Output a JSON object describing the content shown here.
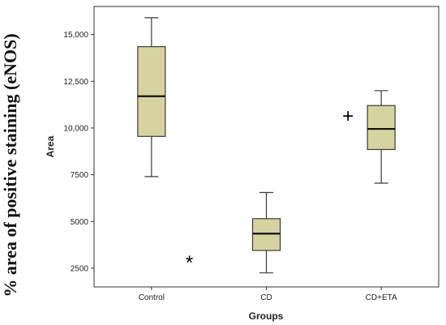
{
  "chart_data": {
    "type": "box",
    "outer_ylabel": "% area of positive staining (eNOS)",
    "ylabel": "Area",
    "xlabel": "Groups",
    "ylim": [
      1500,
      16500
    ],
    "yticks": [
      2500,
      5000,
      7500,
      10000,
      12500,
      15000
    ],
    "ytick_labels": [
      "2500",
      "5000",
      "7500",
      "10,000",
      "12,500",
      "15,000"
    ],
    "grid": false,
    "box_color": "#d6d3a0",
    "box_edge_color": "#3a3a3a",
    "categories": [
      "Control",
      "CD",
      "CD+ETA"
    ],
    "boxes": [
      {
        "label": "Control",
        "min": 7400,
        "q1": 9550,
        "median": 11700,
        "q3": 14350,
        "max": 15900
      },
      {
        "label": "CD",
        "min": 2250,
        "q1": 3450,
        "median": 4350,
        "q3": 5150,
        "max": 6550
      },
      {
        "label": "CD+ETA",
        "min": 7050,
        "q1": 8850,
        "median": 9950,
        "q3": 11200,
        "max": 12000
      }
    ],
    "annotations": [
      {
        "text": "*",
        "near": "CD"
      },
      {
        "text": "+",
        "near": "CD+ETA"
      }
    ]
  }
}
